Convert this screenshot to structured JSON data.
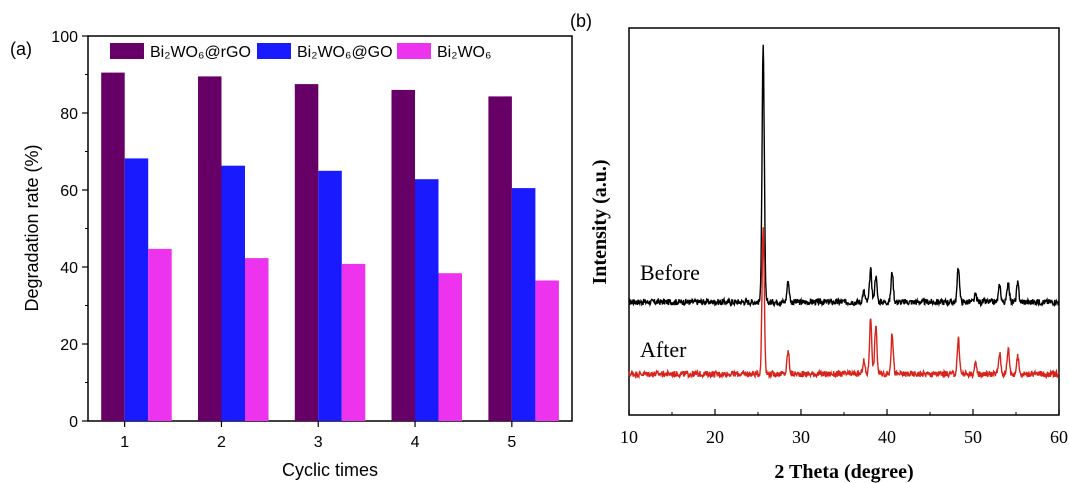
{
  "panels": {
    "a_label": "(a)",
    "b_label": "(b)"
  },
  "chart_data": [
    {
      "type": "bar",
      "panel": "(a)",
      "title": "",
      "xlabel": "Cyclic times",
      "ylabel": "Degradation rate (%)",
      "categories": [
        "1",
        "2",
        "3",
        "4",
        "5"
      ],
      "ylim": [
        0,
        100
      ],
      "yticks": [
        0,
        20,
        40,
        60,
        80,
        100
      ],
      "grid": false,
      "legend_position": "top",
      "series": [
        {
          "name": "Bi₂WO₆@rGO",
          "color": "#660066",
          "values": [
            90.5,
            89.5,
            87.5,
            86,
            84.3
          ]
        },
        {
          "name": "Bi₂WO₆@GO",
          "color": "#1a1aff",
          "values": [
            68.2,
            66.3,
            65,
            62.8,
            60.5
          ]
        },
        {
          "name": "Bi₂WO₆",
          "color": "#ee33ee",
          "values": [
            44.7,
            42.3,
            40.8,
            38.4,
            36.5
          ]
        }
      ]
    },
    {
      "type": "line",
      "panel": "(b)",
      "title": "",
      "xlabel": "2 Theta (degree)",
      "ylabel": "Intensity (a.u.)",
      "xlim": [
        10,
        60
      ],
      "xticks": [
        10,
        20,
        30,
        40,
        50,
        60
      ],
      "y_ticks_shown": false,
      "grid": false,
      "series": [
        {
          "name": "Before",
          "color": "#000000",
          "baseline": 29.2,
          "peaks": [
            {
              "x": 25.6,
              "y": 95.0
            },
            {
              "x": 28.5,
              "y": 34.5
            },
            {
              "x": 37.3,
              "y": 32.0
            },
            {
              "x": 38.1,
              "y": 37.5
            },
            {
              "x": 38.7,
              "y": 36.0
            },
            {
              "x": 40.6,
              "y": 37.0
            },
            {
              "x": 48.3,
              "y": 38.3
            },
            {
              "x": 50.3,
              "y": 31.0
            },
            {
              "x": 53.1,
              "y": 33.5
            },
            {
              "x": 54.1,
              "y": 34.5
            },
            {
              "x": 55.2,
              "y": 34.0
            }
          ]
        },
        {
          "name": "After",
          "color": "#d8231c",
          "baseline": 10.6,
          "peaks": [
            {
              "x": 25.6,
              "y": 48.5
            },
            {
              "x": 28.5,
              "y": 16.5
            },
            {
              "x": 37.3,
              "y": 14.0
            },
            {
              "x": 38.1,
              "y": 25.0
            },
            {
              "x": 38.7,
              "y": 23.0
            },
            {
              "x": 40.6,
              "y": 21.0
            },
            {
              "x": 48.3,
              "y": 19.6
            },
            {
              "x": 50.3,
              "y": 13.0
            },
            {
              "x": 53.1,
              "y": 16.0
            },
            {
              "x": 54.1,
              "y": 17.2
            },
            {
              "x": 55.2,
              "y": 15.0
            }
          ]
        }
      ]
    }
  ]
}
